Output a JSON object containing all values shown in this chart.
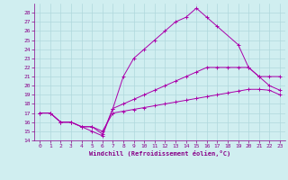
{
  "xlabel": "Windchill (Refroidissement éolien,°C)",
  "background_color": "#d0eef0",
  "grid_color": "#b0d8dc",
  "line_color": "#aa00aa",
  "xlim": [
    -0.5,
    23.5
  ],
  "ylim": [
    14,
    29
  ],
  "xticks": [
    0,
    1,
    2,
    3,
    4,
    5,
    6,
    7,
    8,
    9,
    10,
    11,
    12,
    13,
    14,
    15,
    16,
    17,
    18,
    19,
    20,
    21,
    22,
    23
  ],
  "yticks": [
    14,
    15,
    16,
    17,
    18,
    19,
    20,
    21,
    22,
    23,
    24,
    25,
    26,
    27,
    28
  ],
  "series": [
    {
      "x": [
        0,
        1,
        2,
        3,
        4,
        5,
        6,
        7,
        8,
        9,
        10,
        11,
        12,
        13,
        14,
        15,
        16,
        17,
        19,
        20,
        21,
        22,
        23
      ],
      "y": [
        17,
        17,
        16,
        16,
        15.5,
        15,
        14.5,
        17.5,
        21,
        23,
        24,
        25,
        26,
        27,
        27.5,
        28.5,
        27.5,
        26.5,
        24.5,
        22,
        21,
        20,
        19.5
      ]
    },
    {
      "x": [
        0,
        1,
        2,
        3,
        4,
        5,
        6,
        7,
        8,
        9,
        10,
        11,
        12,
        13,
        14,
        15,
        16,
        17,
        18,
        19,
        20,
        21,
        22,
        23
      ],
      "y": [
        17,
        17,
        16,
        16,
        15.5,
        15.5,
        14.7,
        17.5,
        18,
        18.5,
        19,
        19.5,
        20,
        20.5,
        21,
        21.5,
        22,
        22,
        22,
        22,
        22,
        21,
        21,
        21
      ]
    },
    {
      "x": [
        0,
        1,
        2,
        3,
        4,
        5,
        6,
        7,
        8,
        9,
        10,
        11,
        12,
        13,
        14,
        15,
        16,
        17,
        18,
        19,
        20,
        21,
        22,
        23
      ],
      "y": [
        17,
        17,
        16,
        16,
        15.5,
        15.5,
        15,
        17,
        17.2,
        17.4,
        17.6,
        17.8,
        18.0,
        18.2,
        18.4,
        18.6,
        18.8,
        19.0,
        19.2,
        19.4,
        19.6,
        19.6,
        19.5,
        19
      ]
    }
  ]
}
